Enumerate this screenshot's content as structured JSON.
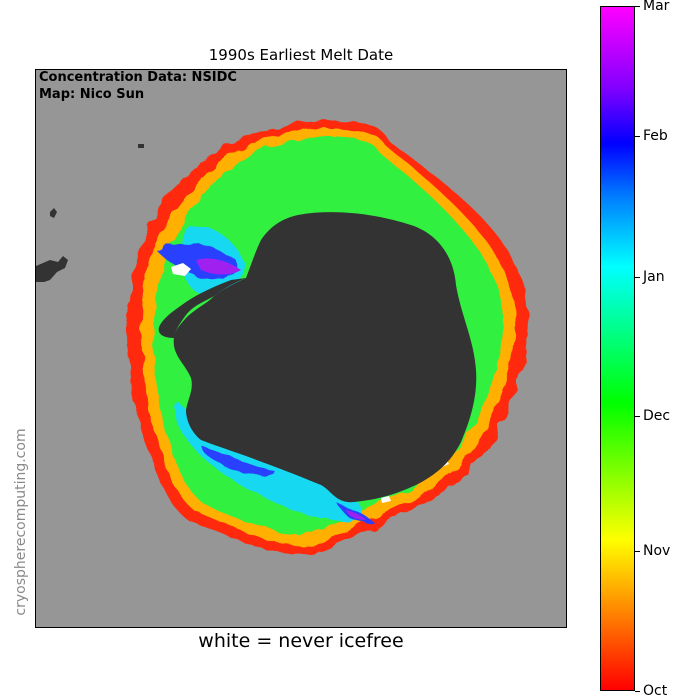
{
  "title": "1990s Earliest Melt Date",
  "credits": {
    "line1": "Concentration Data: NSIDC",
    "line2": "Map: Nico Sun"
  },
  "watermark": "cryospherecomputing.com",
  "caption": "white = never icefree",
  "colorbar": {
    "labels": [
      "Oct",
      "Nov",
      "Dec",
      "Jan",
      "Feb",
      "Mar"
    ],
    "colors": [
      "#ff0000",
      "#ff8000",
      "#ffff00",
      "#80ff00",
      "#00ff00",
      "#00ff80",
      "#00ffff",
      "#0080ff",
      "#0000ff",
      "#8000ff",
      "#ff00ff"
    ]
  },
  "map_colors": {
    "ocean": "#969696",
    "land": "#333333",
    "never_icefree": "#ffffff"
  }
}
